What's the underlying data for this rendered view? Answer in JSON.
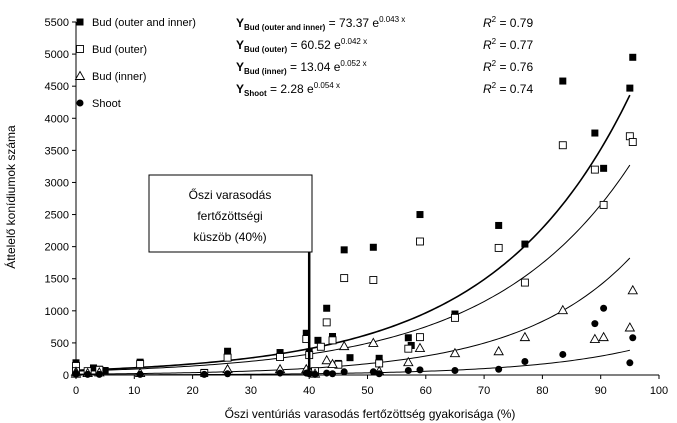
{
  "chart_data": {
    "type": "scatter",
    "xlabel": "Őszi ventúriás varasodás fertőzöttség gyakorisága (%)",
    "ylabel": "Áttelelő konídiumok száma",
    "xlim": [
      0,
      100
    ],
    "ylim": [
      0,
      5500
    ],
    "x_ticks": [
      "0",
      "10",
      "20",
      "30",
      "40",
      "50",
      "60",
      "70",
      "80",
      "90",
      "100"
    ],
    "y_ticks": [
      "0",
      "500",
      "1000",
      "1500",
      "2000",
      "2500",
      "3000",
      "3500",
      "4000",
      "4500",
      "5000",
      "5500"
    ],
    "grid": false,
    "legend_position": "top-left",
    "series": [
      {
        "name": "Bud (outer and inner)",
        "marker": "square-filled",
        "points": [
          [
            0,
            190
          ],
          [
            0,
            120
          ],
          [
            0,
            60
          ],
          [
            2,
            40
          ],
          [
            3,
            110
          ],
          [
            4,
            90
          ],
          [
            5,
            70
          ],
          [
            11,
            200
          ],
          [
            22,
            40
          ],
          [
            26,
            370
          ],
          [
            35,
            350
          ],
          [
            39.5,
            650
          ],
          [
            40,
            360
          ],
          [
            41,
            60
          ],
          [
            41.5,
            540
          ],
          [
            43,
            1040
          ],
          [
            44,
            600
          ],
          [
            45,
            180
          ],
          [
            46,
            1950
          ],
          [
            47,
            270
          ],
          [
            51,
            1990
          ],
          [
            52,
            260
          ],
          [
            57,
            580
          ],
          [
            57.5,
            460
          ],
          [
            59,
            2500
          ],
          [
            65,
            950
          ],
          [
            72.5,
            2330
          ],
          [
            77,
            2040
          ],
          [
            83.5,
            4580
          ],
          [
            89,
            3770
          ],
          [
            90.5,
            3220
          ],
          [
            95,
            4470
          ],
          [
            95.5,
            4950
          ]
        ]
      },
      {
        "name": "Bud (outer)",
        "marker": "square-open",
        "points": [
          [
            0,
            140
          ],
          [
            0,
            60
          ],
          [
            2,
            60
          ],
          [
            4,
            80
          ],
          [
            11,
            170
          ],
          [
            22,
            30
          ],
          [
            26,
            270
          ],
          [
            35,
            280
          ],
          [
            39.5,
            560
          ],
          [
            40,
            310
          ],
          [
            41,
            60
          ],
          [
            42,
            440
          ],
          [
            43,
            820
          ],
          [
            44,
            540
          ],
          [
            45,
            160
          ],
          [
            46,
            1510
          ],
          [
            51,
            1480
          ],
          [
            52,
            180
          ],
          [
            57,
            410
          ],
          [
            59,
            2080
          ],
          [
            59,
            590
          ],
          [
            65,
            890
          ],
          [
            72.5,
            1980
          ],
          [
            77,
            1440
          ],
          [
            83.5,
            3580
          ],
          [
            89,
            3200
          ],
          [
            90.5,
            2650
          ],
          [
            95,
            3720
          ],
          [
            95.5,
            3630
          ]
        ]
      },
      {
        "name": "Bud (inner)",
        "marker": "triangle-open",
        "points": [
          [
            0,
            50
          ],
          [
            0,
            20
          ],
          [
            2,
            30
          ],
          [
            4,
            40
          ],
          [
            11,
            30
          ],
          [
            26,
            90
          ],
          [
            35,
            90
          ],
          [
            39.5,
            90
          ],
          [
            40,
            70
          ],
          [
            41,
            20
          ],
          [
            43,
            230
          ],
          [
            44,
            170
          ],
          [
            46,
            450
          ],
          [
            51,
            500
          ],
          [
            52,
            60
          ],
          [
            57,
            200
          ],
          [
            59,
            420
          ],
          [
            65,
            340
          ],
          [
            72.5,
            370
          ],
          [
            77,
            590
          ],
          [
            83.5,
            1010
          ],
          [
            89,
            560
          ],
          [
            90.5,
            590
          ],
          [
            95,
            740
          ],
          [
            95.5,
            1320
          ]
        ]
      },
      {
        "name": "Shoot",
        "marker": "circle-filled",
        "points": [
          [
            0,
            20
          ],
          [
            0,
            10
          ],
          [
            2,
            10
          ],
          [
            4,
            10
          ],
          [
            11,
            10
          ],
          [
            22,
            10
          ],
          [
            26,
            20
          ],
          [
            35,
            30
          ],
          [
            39.5,
            30
          ],
          [
            40,
            20
          ],
          [
            41,
            10
          ],
          [
            43,
            30
          ],
          [
            44,
            20
          ],
          [
            46,
            50
          ],
          [
            51,
            50
          ],
          [
            52,
            20
          ],
          [
            57,
            70
          ],
          [
            59,
            80
          ],
          [
            65,
            70
          ],
          [
            72.5,
            90
          ],
          [
            77,
            210
          ],
          [
            83.5,
            320
          ],
          [
            89,
            800
          ],
          [
            90.5,
            1040
          ],
          [
            95,
            190
          ],
          [
            95.5,
            580
          ]
        ]
      }
    ],
    "trendlines": [
      {
        "series": "Bud (outer and inner)",
        "a": 73.37,
        "b": 0.043
      },
      {
        "series": "Bud (outer)",
        "a": 60.52,
        "b": 0.042
      },
      {
        "series": "Bud (inner)",
        "a": 13.04,
        "b": 0.052
      },
      {
        "series": "Shoot",
        "a": 2.28,
        "b": 0.054
      }
    ],
    "equations": [
      {
        "sub": "Bud (outer and inner)",
        "mid": " =  73.37 e",
        "exp": "0.043 x",
        "r2": "=  0.79"
      },
      {
        "sub": "Bud (outer)",
        "mid": " =  60.52 e",
        "exp": "0.042 x",
        "r2": "=  0.77"
      },
      {
        "sub": "Bud (inner)",
        "mid": " =  13.04 e",
        "exp": "0.052 x",
        "r2": "=  0.76"
      },
      {
        "sub": "Shoot",
        "mid": " =  2.28 e",
        "exp": "0.054 x",
        "r2": "=  0.74"
      }
    ],
    "annotation": {
      "lines": [
        "Őszi varasodás",
        "fertőzöttségi",
        "küszöb (40%)"
      ],
      "x": 40
    }
  }
}
